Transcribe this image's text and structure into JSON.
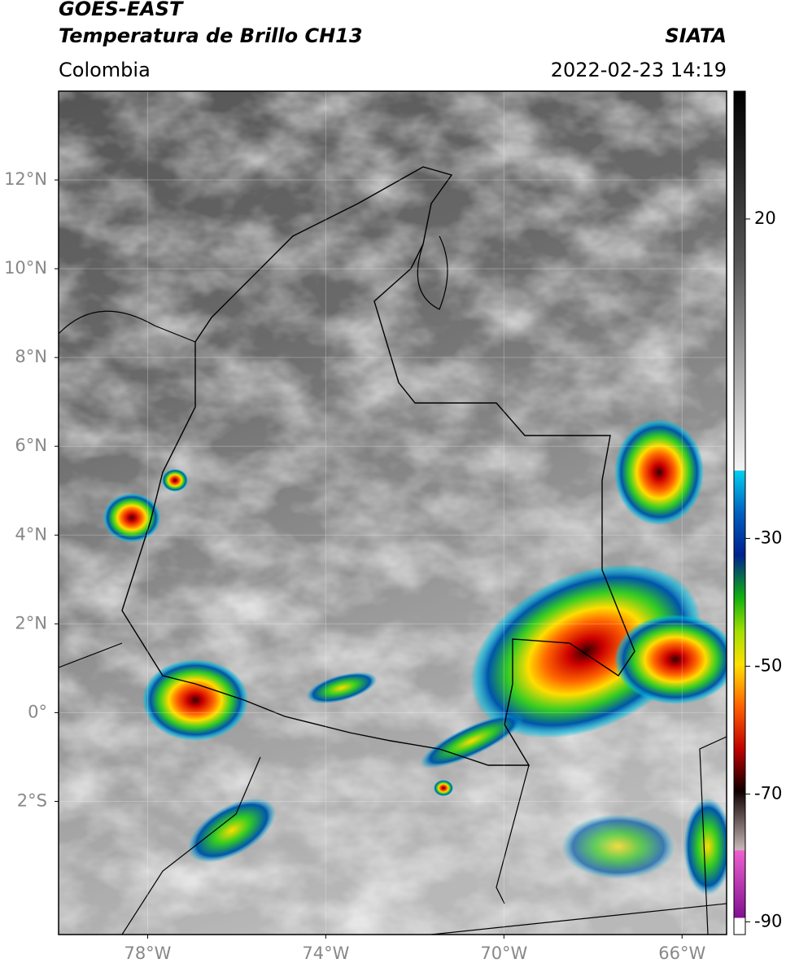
{
  "header": {
    "title": "GOES-EAST",
    "subtitle": "Temperatura de Brillo CH13",
    "region": "Colombia",
    "source": "SIATA",
    "datetime": "2022-02-23 14:19"
  },
  "map": {
    "lonlim": [
      -80,
      -65
    ],
    "latlim": [
      -5,
      14
    ],
    "grid": true,
    "lon_ticks": [
      {
        "value": -78,
        "label": "78°W"
      },
      {
        "value": -74,
        "label": "74°W"
      },
      {
        "value": -70,
        "label": "70°W"
      },
      {
        "value": -66,
        "label": "66°W"
      }
    ],
    "lat_ticks": [
      {
        "value": 12,
        "label": "12°N"
      },
      {
        "value": 10,
        "label": "10°N"
      },
      {
        "value": 8,
        "label": "8°N"
      },
      {
        "value": 6,
        "label": "6°N"
      },
      {
        "value": 4,
        "label": "4°N"
      },
      {
        "value": 2,
        "label": "2°N"
      },
      {
        "value": 0,
        "label": "0°"
      },
      {
        "value": -2,
        "label": "2°S"
      }
    ]
  },
  "colorbar": {
    "lim": [
      -92,
      40
    ],
    "ticks": [
      20,
      -30,
      -50,
      -70,
      -90
    ]
  }
}
